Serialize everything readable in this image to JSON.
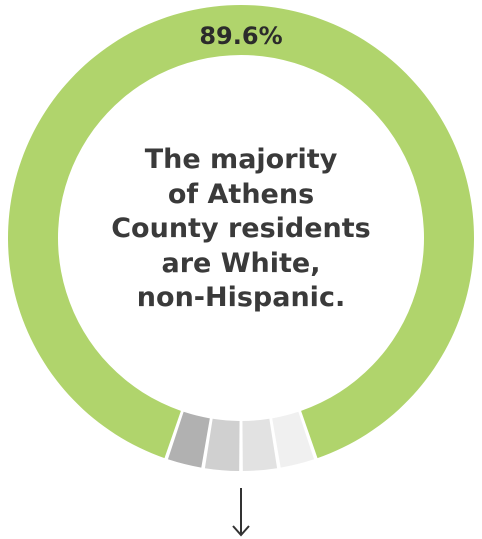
{
  "chart_data": {
    "type": "donut",
    "slices": [
      {
        "value": 89.6,
        "color": "#b0d46c"
      },
      {
        "value": 2.6,
        "color": "#f0f0f0"
      },
      {
        "value": 2.6,
        "color": "#e2e2e2"
      },
      {
        "value": 2.6,
        "color": "#d0d0d0"
      },
      {
        "value": 2.6,
        "color": "#b1b1b1"
      }
    ],
    "highlight_label": "89.6%",
    "center_text": [
      "The majority",
      "of Athens",
      "County residents",
      "are White,",
      "non-Hispanic."
    ]
  },
  "arrow_icon": "arrow-down-icon"
}
